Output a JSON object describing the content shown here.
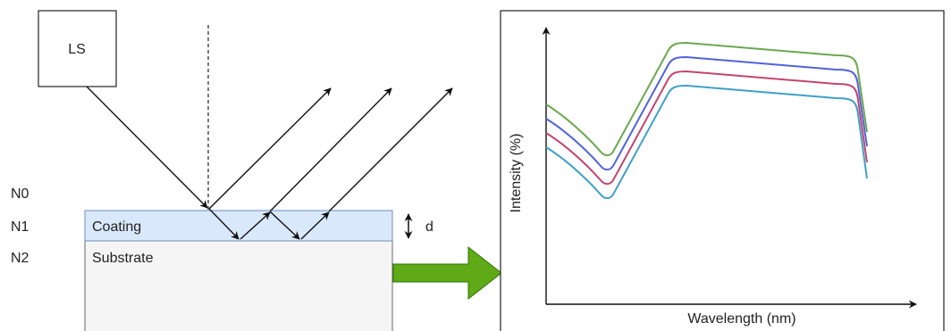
{
  "light_source": {
    "label": "LS"
  },
  "layers": {
    "n0": "N0",
    "n1": "N1",
    "n2": "N2",
    "coating": "Coating",
    "substrate": "Substrate",
    "thickness": "d"
  },
  "colors": {
    "coating_fill": "#dae8fc",
    "coating_border": "#6c8ebf",
    "substrate_fill": "#f5f5f5",
    "substrate_border": "#666666",
    "arrow_fill": "#60a917",
    "arrow_border": "#2d7600"
  },
  "chart_data": {
    "type": "line",
    "title": "",
    "xlabel": "Wavelength (nm)",
    "ylabel": "Intensity (%)",
    "grid": false,
    "legend": "none",
    "series_colors": [
      "#6aa84f",
      "#5163d9",
      "#c2456f",
      "#3fa0c8"
    ]
  }
}
